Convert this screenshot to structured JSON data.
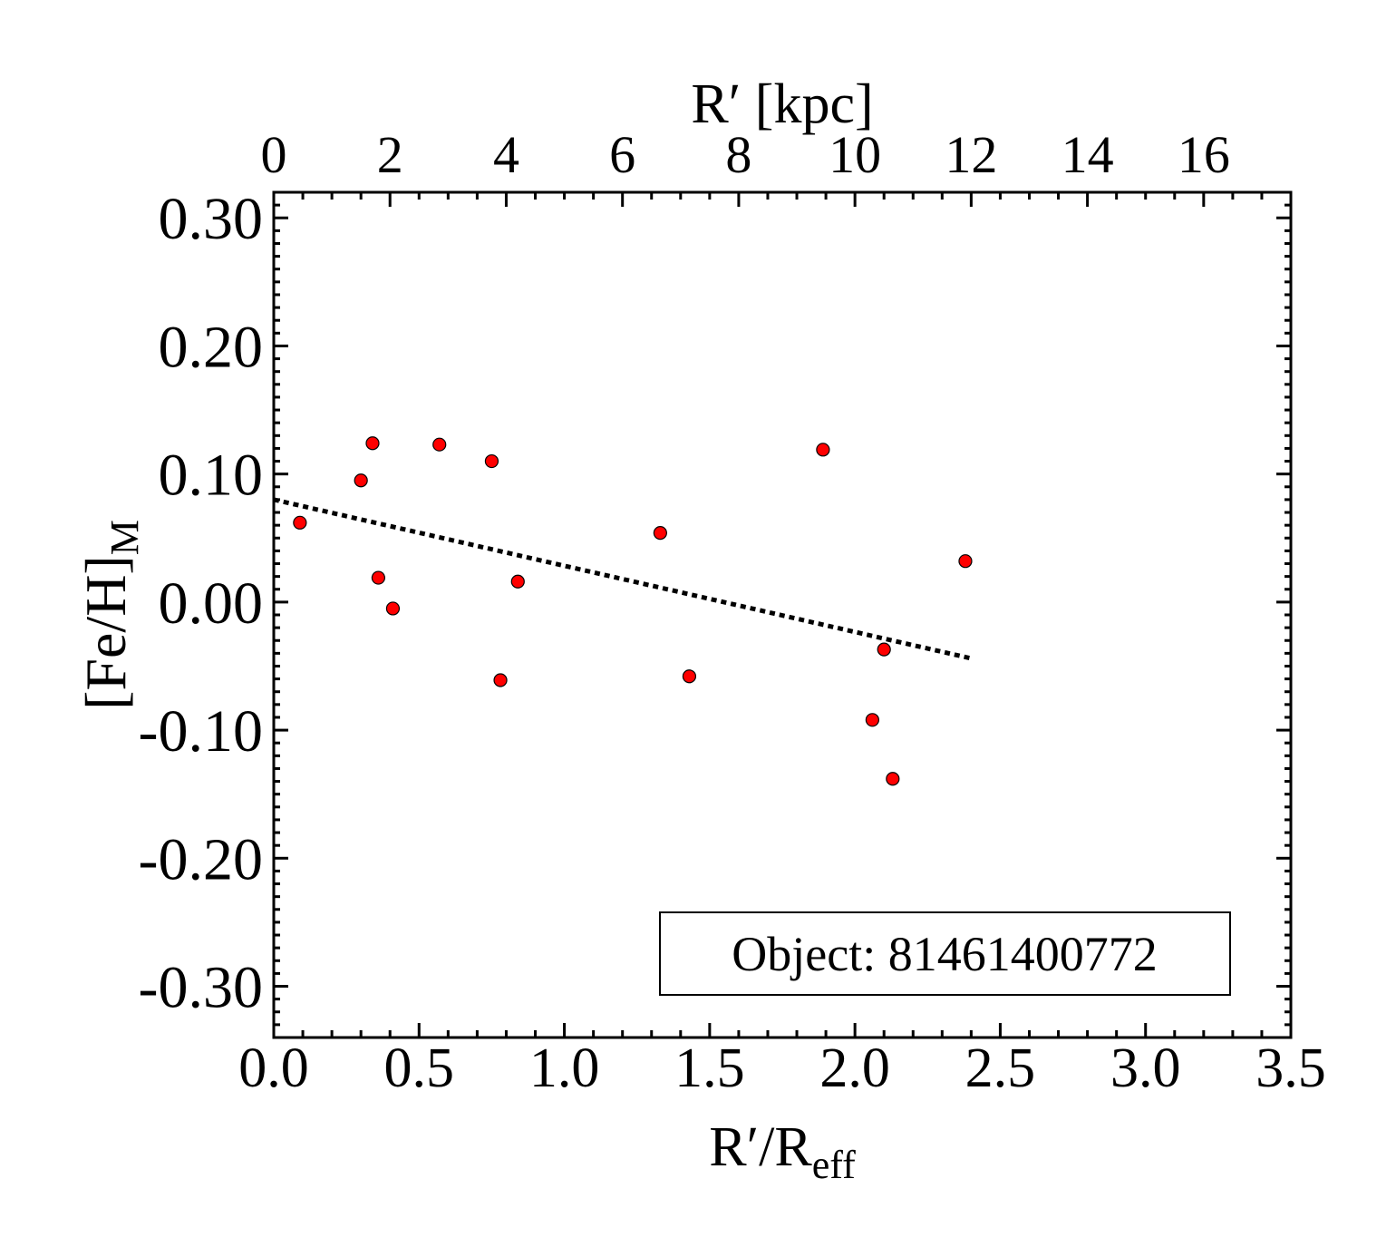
{
  "chart_data": {
    "type": "scatter",
    "title": "",
    "xlabel": {
      "main": "R′/R",
      "sub": "eff"
    },
    "ylabel": {
      "main": "[Fe/H]",
      "sub": "M"
    },
    "top_xlabel": "R′ [kpc]",
    "xlim": [
      0.0,
      3.5
    ],
    "ylim": [
      -0.34,
      0.32
    ],
    "top_xlim_kpc": [
      0,
      17.5
    ],
    "x_ticks": [
      "0.0",
      "0.5",
      "1.0",
      "1.5",
      "2.0",
      "2.5",
      "3.0",
      "3.5"
    ],
    "x_tick_values": [
      0.0,
      0.5,
      1.0,
      1.5,
      2.0,
      2.5,
      3.0,
      3.5
    ],
    "y_ticks": [
      "-0.30",
      "-0.20",
      "-0.10",
      "0.00",
      "0.10",
      "0.20",
      "0.30"
    ],
    "y_tick_values": [
      -0.3,
      -0.2,
      -0.1,
      0.0,
      0.1,
      0.2,
      0.3
    ],
    "top_x_ticks": [
      "0",
      "2",
      "4",
      "6",
      "8",
      "10",
      "12",
      "14",
      "16"
    ],
    "top_x_tick_values": [
      0,
      2,
      4,
      6,
      8,
      10,
      12,
      14,
      16
    ],
    "series": [
      {
        "marker_color": "#ff0000",
        "points": [
          {
            "x": 0.09,
            "y": 0.062
          },
          {
            "x": 0.3,
            "y": 0.095
          },
          {
            "x": 0.34,
            "y": 0.124
          },
          {
            "x": 0.36,
            "y": 0.019
          },
          {
            "x": 0.41,
            "y": -0.005
          },
          {
            "x": 0.57,
            "y": 0.123
          },
          {
            "x": 0.75,
            "y": 0.11
          },
          {
            "x": 0.78,
            "y": -0.061
          },
          {
            "x": 0.84,
            "y": 0.016
          },
          {
            "x": 1.33,
            "y": 0.054
          },
          {
            "x": 1.43,
            "y": -0.058
          },
          {
            "x": 1.89,
            "y": 0.119
          },
          {
            "x": 2.06,
            "y": -0.092
          },
          {
            "x": 2.1,
            "y": -0.037
          },
          {
            "x": 2.13,
            "y": -0.138
          },
          {
            "x": 2.38,
            "y": 0.032
          }
        ]
      }
    ],
    "fit_line": {
      "style": "dotted",
      "x": [
        0.0,
        2.4
      ],
      "y": [
        0.08,
        -0.044
      ]
    },
    "annotation": "Object: 81461400772",
    "grid": false,
    "legend": "none"
  }
}
